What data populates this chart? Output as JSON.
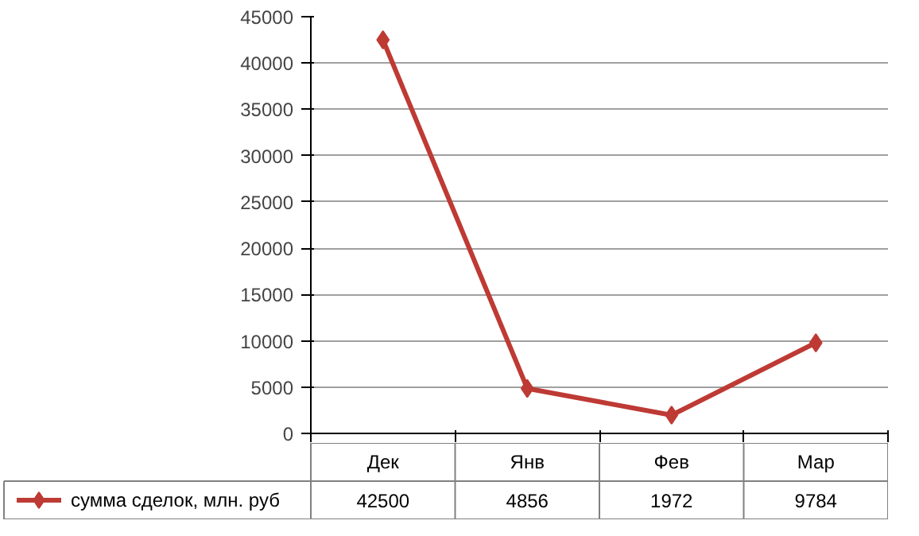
{
  "chart_data": {
    "type": "line",
    "categories": [
      "Дек",
      "Янв",
      "Фев",
      "Мар"
    ],
    "series": [
      {
        "name": "сумма сделок, млн. руб",
        "color": "#be3a34",
        "values": [
          42500,
          4856,
          1972,
          9784
        ]
      }
    ],
    "ylim": [
      0,
      45000
    ],
    "yticks": [
      0,
      5000,
      10000,
      15000,
      20000,
      25000,
      30000,
      35000,
      40000,
      45000
    ],
    "grid": "y",
    "marker": "diamond",
    "line_style": "solid",
    "data_labels": true,
    "legend": "bottom left"
  }
}
